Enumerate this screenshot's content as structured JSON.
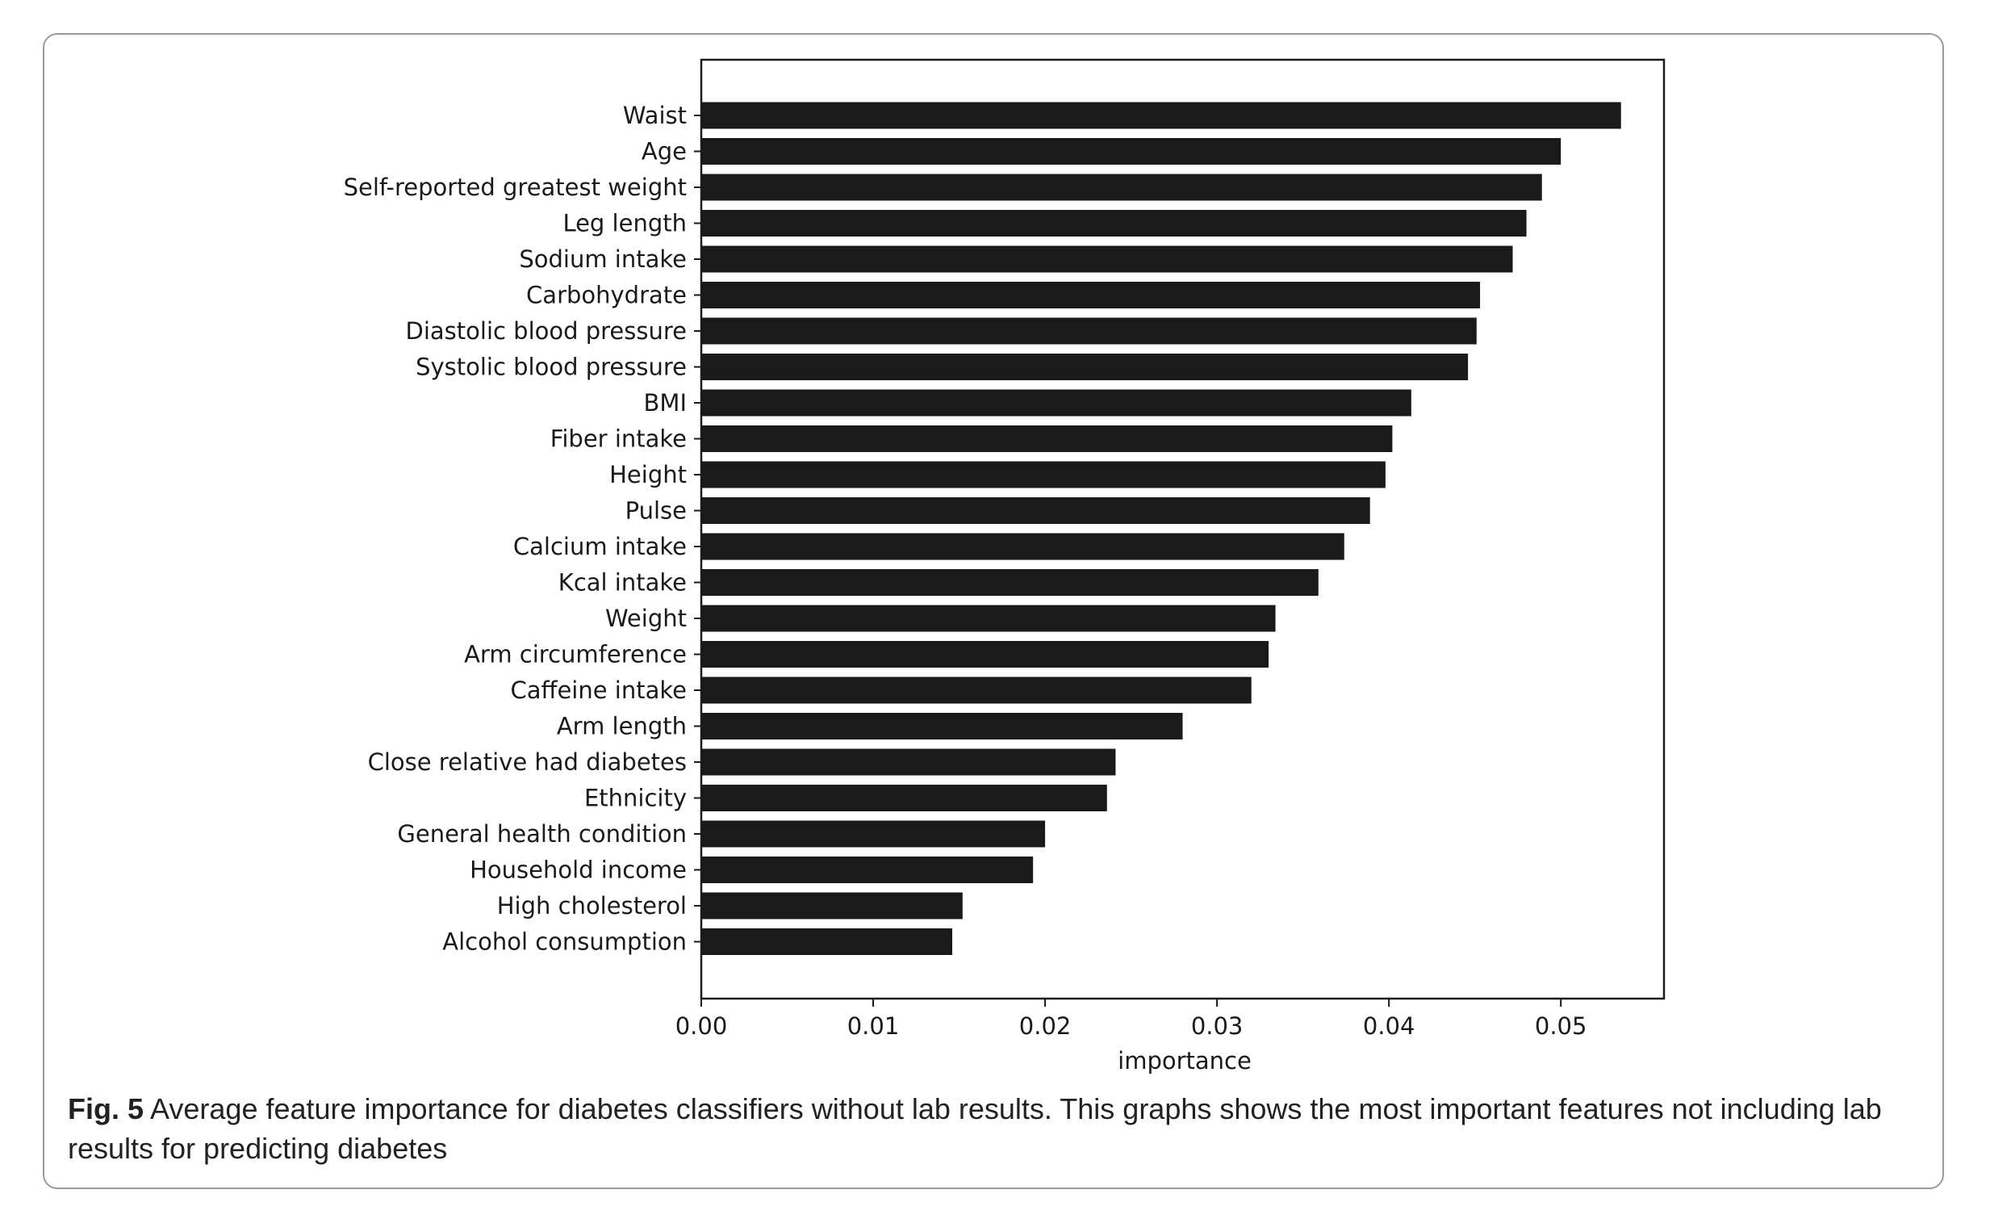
{
  "figure": {
    "caption_label": "Fig. 5",
    "caption_text": "Average feature importance for diabetes classifiers without lab results. This graphs shows the most important features not including lab results for predicting diabetes"
  },
  "chart_data": {
    "type": "bar",
    "orientation": "horizontal",
    "categories": [
      "Waist",
      "Age",
      "Self-reported greatest weight",
      "Leg length",
      "Sodium intake",
      "Carbohydrate",
      "Diastolic blood pressure",
      "Systolic blood pressure",
      "BMI",
      "Fiber intake",
      "Height",
      "Pulse",
      "Calcium intake",
      "Kcal intake",
      "Weight",
      "Arm circumference",
      "Caffeine intake",
      "Arm length",
      "Close relative had diabetes",
      "Ethnicity",
      "General health condition",
      "Household income",
      "High cholesterol",
      "Alcohol consumption"
    ],
    "values": [
      0.0535,
      0.05,
      0.0489,
      0.048,
      0.0472,
      0.0453,
      0.0451,
      0.0446,
      0.0413,
      0.0402,
      0.0398,
      0.0389,
      0.0374,
      0.0359,
      0.0334,
      0.033,
      0.032,
      0.028,
      0.0241,
      0.0236,
      0.02,
      0.0193,
      0.0152,
      0.0146
    ],
    "title": "",
    "xlabel": "importance",
    "ylabel": "",
    "xlim": [
      0,
      0.056
    ],
    "xticks": [
      0.0,
      0.01,
      0.02,
      0.03,
      0.04,
      0.05
    ],
    "xtick_labels": [
      "0.00",
      "0.01",
      "0.02",
      "0.03",
      "0.04",
      "0.05"
    ],
    "bar_color": "#1a1a1a",
    "grid": false,
    "legend": "none"
  }
}
